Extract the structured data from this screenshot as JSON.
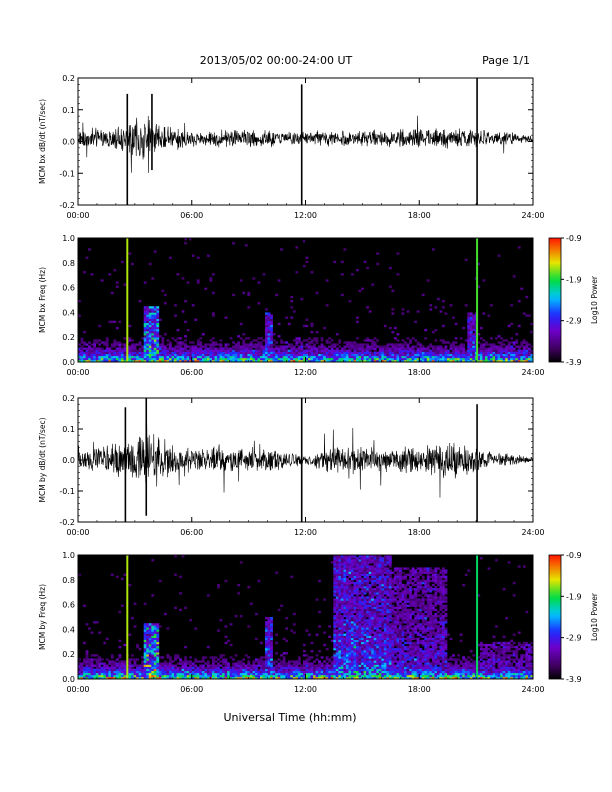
{
  "header": {
    "title": "2013/05/02  00:00-24:00 UT",
    "page": "Page 1/1"
  },
  "footer": {
    "xlabel": "Universal Time (hh:mm)"
  },
  "colors": {
    "trace": "#000000",
    "spectrogram_background": "#000000"
  },
  "chart_data": [
    {
      "type": "line",
      "ylabel": "MCM bx dB/dt (nT/sec)",
      "xlim": [
        0,
        24
      ],
      "ylim": [
        -0.2,
        0.2
      ],
      "yticks": [
        "-0.2",
        "-0.1",
        "0.0",
        "0.1",
        "0.2"
      ],
      "xticks": [
        "00:00",
        "06:00",
        "12:00",
        "18:00",
        "24:00"
      ],
      "baseline": 0.01,
      "envelope_hours": [
        0,
        2,
        2.5,
        3.2,
        4,
        5,
        6,
        7,
        8,
        10,
        12,
        14,
        16,
        18,
        20,
        22,
        24
      ],
      "envelope_amplitude": [
        0.03,
        0.04,
        0.05,
        0.08,
        0.06,
        0.04,
        0.03,
        0.03,
        0.035,
        0.03,
        0.025,
        0.03,
        0.03,
        0.035,
        0.035,
        0.025,
        0.015
      ],
      "spikes": [
        {
          "hour": 2.6,
          "min": -0.2,
          "max": 0.15
        },
        {
          "hour": 3.9,
          "min": -0.09,
          "max": 0.15
        },
        {
          "hour": 11.8,
          "min": -0.2,
          "max": 0.18
        },
        {
          "hour": 21.05,
          "min": -0.2,
          "max": 0.2
        }
      ]
    },
    {
      "type": "heatmap",
      "ylabel": "MCM bx Freq (Hz)",
      "xlim": [
        0,
        24
      ],
      "ylim": [
        0,
        1.0
      ],
      "yticks": [
        "0.0",
        "0.2",
        "0.4",
        "0.6",
        "0.8",
        "1.0"
      ],
      "xticks": [
        "00:00",
        "06:00",
        "12:00",
        "18:00",
        "24:00"
      ],
      "colorbar": {
        "label": "Log10 Power",
        "ticks": [
          "-0.9",
          "-1.9",
          "-2.9",
          "-3.9"
        ],
        "range": [
          -3.9,
          -0.9
        ]
      },
      "background_log_power": -3.9,
      "event_lines": [
        {
          "hour": 2.6,
          "log_power": -1.6
        },
        {
          "hour": 21.05,
          "log_power": -1.8
        }
      ],
      "activity_bands": [
        {
          "start": 3.5,
          "end": 4.3,
          "max_freq": 0.45,
          "level": 0.7
        },
        {
          "start": 9.9,
          "end": 10.2,
          "max_freq": 0.4,
          "level": 0.5
        },
        {
          "start": 20.5,
          "end": 21.0,
          "max_freq": 0.4,
          "level": 0.45
        }
      ]
    },
    {
      "type": "line",
      "ylabel": "MCM by dB/dt (nT/sec)",
      "xlim": [
        0,
        24
      ],
      "ylim": [
        -0.2,
        0.2
      ],
      "yticks": [
        "-0.2",
        "-0.1",
        "0.0",
        "0.1",
        "0.2"
      ],
      "xticks": [
        "00:00",
        "06:00",
        "12:00",
        "18:00",
        "24:00"
      ],
      "baseline": 0.0,
      "envelope_hours": [
        0,
        2,
        3,
        4,
        5,
        6,
        7,
        8,
        9,
        10,
        12,
        13,
        14,
        16,
        18,
        19.5,
        21,
        22,
        24
      ],
      "envelope_amplitude": [
        0.03,
        0.06,
        0.08,
        0.1,
        0.06,
        0.04,
        0.05,
        0.05,
        0.045,
        0.045,
        0.02,
        0.04,
        0.05,
        0.045,
        0.05,
        0.07,
        0.05,
        0.03,
        0.01
      ],
      "spikes": [
        {
          "hour": 2.5,
          "min": -0.2,
          "max": 0.17
        },
        {
          "hour": 3.6,
          "min": -0.18,
          "max": 0.2
        },
        {
          "hour": 11.8,
          "min": -0.2,
          "max": 0.2
        },
        {
          "hour": 21.05,
          "min": -0.2,
          "max": 0.18
        }
      ]
    },
    {
      "type": "heatmap",
      "ylabel": "MCM by Freq (Hz)",
      "xlim": [
        0,
        24
      ],
      "ylim": [
        0,
        1.0
      ],
      "yticks": [
        "0.0",
        "0.2",
        "0.4",
        "0.6",
        "0.8",
        "1.0"
      ],
      "xticks": [
        "00:00",
        "06:00",
        "12:00",
        "18:00",
        "24:00"
      ],
      "colorbar": {
        "label": "Log10 Power",
        "ticks": [
          "-0.9",
          "-1.9",
          "-2.9",
          "-3.9"
        ],
        "range": [
          -3.9,
          -0.9
        ]
      },
      "background_log_power": -3.9,
      "event_lines": [
        {
          "hour": 2.6,
          "log_power": -1.6
        },
        {
          "hour": 21.05,
          "log_power": -2.0
        }
      ],
      "activity_bands": [
        {
          "start": 3.5,
          "end": 4.3,
          "max_freq": 0.45,
          "level": 0.75
        },
        {
          "start": 9.9,
          "end": 10.2,
          "max_freq": 0.5,
          "level": 0.5
        },
        {
          "start": 13.5,
          "end": 16.5,
          "max_freq": 1.0,
          "level": 0.55
        },
        {
          "start": 16.5,
          "end": 19.5,
          "max_freq": 0.9,
          "level": 0.4
        },
        {
          "start": 21.2,
          "end": 24.0,
          "max_freq": 0.3,
          "level": 0.3
        }
      ]
    }
  ]
}
